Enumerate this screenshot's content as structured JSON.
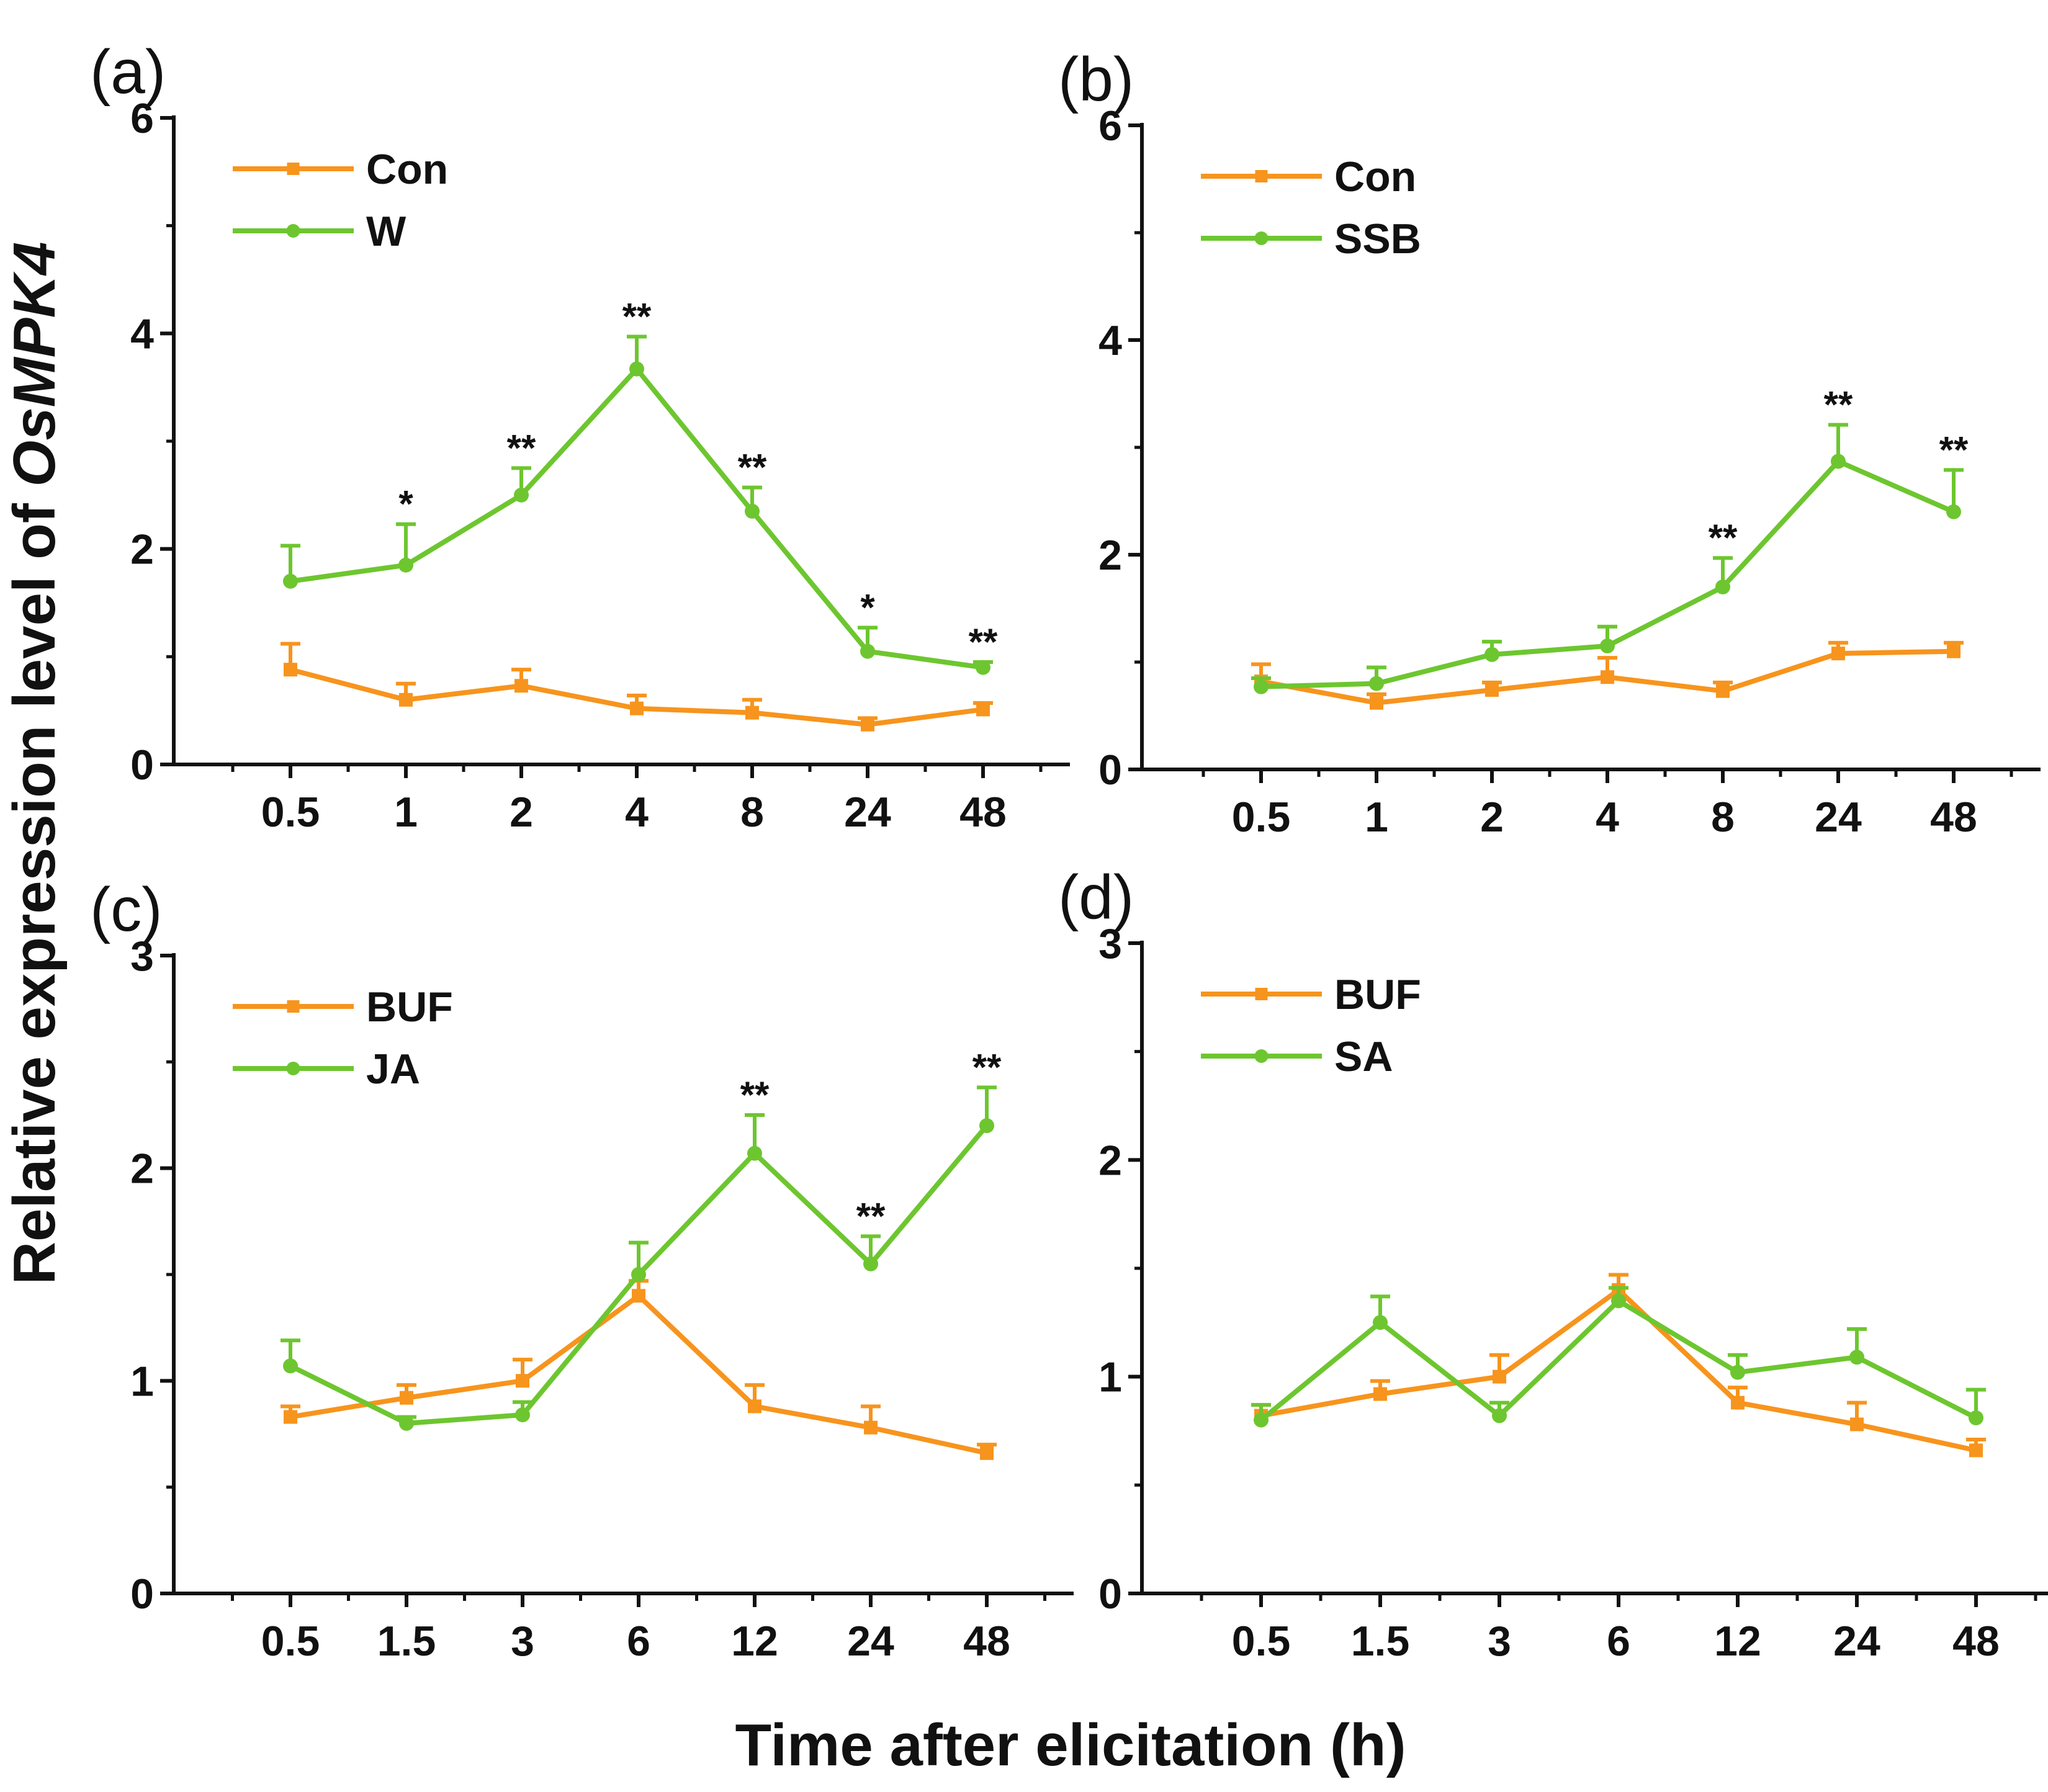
{
  "figure": {
    "xlabel": "Time after elicitation (h)",
    "ylabel_prefix": "Relative expression level of ",
    "ylabel_gene": "OsMPK4"
  },
  "colors": {
    "control": "#F7941D",
    "treatment": "#6DC62F",
    "axis": "#111111"
  },
  "chart_data": [
    {
      "panel": "(a)",
      "type": "line",
      "categories": [
        "0.5",
        "1",
        "2",
        "4",
        "8",
        "24",
        "48"
      ],
      "ylim": [
        0,
        6
      ],
      "yticks": [
        "0",
        "2",
        "4",
        "6"
      ],
      "yminor": [
        1,
        3,
        5
      ],
      "legend_position": "top-left",
      "series": [
        {
          "name": "Con",
          "role": "control",
          "marker": "square",
          "values": [
            0.88,
            0.6,
            0.73,
            0.52,
            0.48,
            0.37,
            0.51
          ],
          "errors": [
            0.24,
            0.15,
            0.15,
            0.12,
            0.12,
            0.06,
            0.06
          ]
        },
        {
          "name": "W",
          "role": "treatment",
          "marker": "circle",
          "values": [
            1.7,
            1.85,
            2.5,
            3.67,
            2.35,
            1.05,
            0.9
          ],
          "errors": [
            0.33,
            0.38,
            0.25,
            0.3,
            0.22,
            0.22,
            0.05
          ]
        }
      ],
      "significance": [
        "",
        "*",
        "**",
        "**",
        "**",
        "*",
        "**"
      ]
    },
    {
      "panel": "(b)",
      "type": "line",
      "categories": [
        "0.5",
        "1",
        "2",
        "4",
        "8",
        "24",
        "48"
      ],
      "ylim": [
        0,
        6
      ],
      "yticks": [
        "0",
        "2",
        "4",
        "6"
      ],
      "yminor": [
        1,
        3,
        5
      ],
      "legend_position": "top-left",
      "series": [
        {
          "name": "Con",
          "role": "control",
          "marker": "square",
          "values": [
            0.82,
            0.62,
            0.74,
            0.86,
            0.73,
            1.08,
            1.1
          ],
          "errors": [
            0.16,
            0.08,
            0.07,
            0.18,
            0.08,
            0.1,
            0.08
          ]
        },
        {
          "name": "SSB",
          "role": "treatment",
          "marker": "circle",
          "values": [
            0.77,
            0.8,
            1.07,
            1.15,
            1.7,
            2.87,
            2.4
          ],
          "errors": [
            0.08,
            0.15,
            0.12,
            0.18,
            0.27,
            0.34,
            0.39
          ]
        }
      ],
      "significance": [
        "",
        "",
        "",
        "",
        "**",
        "**",
        "**"
      ]
    },
    {
      "panel": "(c)",
      "type": "line",
      "categories": [
        "0.5",
        "1.5",
        "3",
        "6",
        "12",
        "24",
        "48"
      ],
      "ylim": [
        0,
        3
      ],
      "yticks": [
        "0",
        "1",
        "2",
        "3"
      ],
      "yminor": [
        0.5,
        1.5,
        2.5
      ],
      "legend_position": "top-left",
      "series": [
        {
          "name": "BUF",
          "role": "control",
          "marker": "square",
          "values": [
            0.83,
            0.92,
            1.0,
            1.4,
            0.88,
            0.78,
            0.66
          ],
          "errors": [
            0.05,
            0.06,
            0.1,
            0.07,
            0.1,
            0.1,
            0.04
          ]
        },
        {
          "name": "JA",
          "role": "treatment",
          "marker": "circle",
          "values": [
            1.07,
            0.8,
            0.84,
            1.5,
            2.07,
            1.55,
            2.2
          ],
          "errors": [
            0.12,
            0.03,
            0.06,
            0.15,
            0.18,
            0.13,
            0.18
          ]
        }
      ],
      "significance": [
        "",
        "",
        "",
        "",
        "**",
        "**",
        "**"
      ]
    },
    {
      "panel": "(d)",
      "type": "line",
      "categories": [
        "0.5",
        "1.5",
        "3",
        "6",
        "12",
        "24",
        "48"
      ],
      "ylim": [
        0,
        3
      ],
      "yticks": [
        "0",
        "1",
        "2",
        "3"
      ],
      "yminor": [
        0.5,
        1.5,
        2.5
      ],
      "legend_position": "top-left",
      "series": [
        {
          "name": "BUF",
          "role": "control",
          "marker": "square",
          "values": [
            0.82,
            0.92,
            1.0,
            1.4,
            0.88,
            0.78,
            0.66
          ],
          "errors": [
            0.05,
            0.06,
            0.1,
            0.07,
            0.07,
            0.1,
            0.05
          ]
        },
        {
          "name": "SA",
          "role": "treatment",
          "marker": "circle",
          "values": [
            0.8,
            1.25,
            0.82,
            1.35,
            1.02,
            1.09,
            0.81
          ],
          "errors": [
            0.07,
            0.12,
            0.06,
            0.06,
            0.08,
            0.13,
            0.13
          ]
        }
      ],
      "significance": [
        "",
        "",
        "",
        "",
        "",
        "",
        ""
      ]
    }
  ]
}
